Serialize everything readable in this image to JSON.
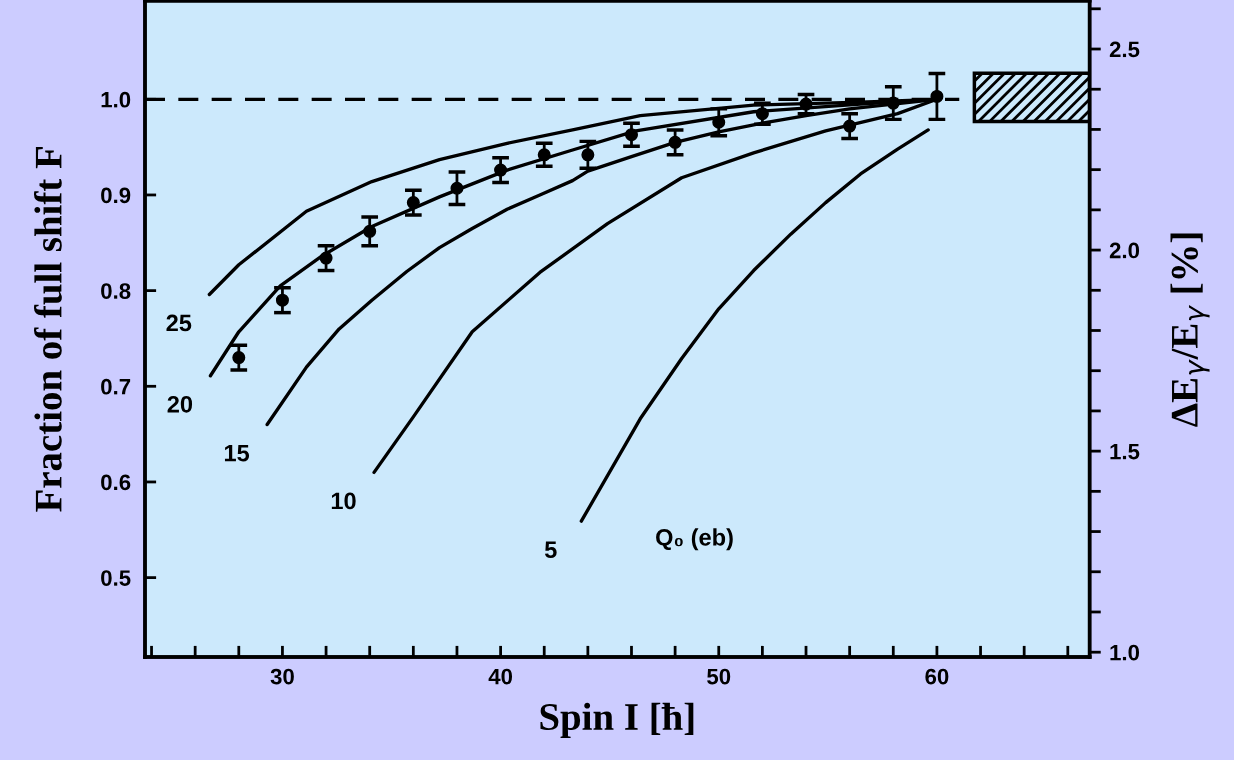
{
  "chart_data": {
    "type": "line",
    "xlabel": "Spin I [ħ]",
    "ylabel": "Fraction of full shift F",
    "y2label": "ΔE$_{γ}$/E$_{γ}$ [%]",
    "annotations": [
      "Q₀ (eb)"
    ],
    "xlim": [
      23.7,
      67
    ],
    "ylim": [
      0.417,
      1.103
    ],
    "y2lim": [
      0.988,
      2.62
    ],
    "xticks": [
      {
        "value": 24,
        "label": null
      },
      {
        "value": 26,
        "label": null
      },
      {
        "value": 28,
        "label": null
      },
      {
        "value": 30,
        "label": "30"
      },
      {
        "value": 32,
        "label": null
      },
      {
        "value": 34,
        "label": null
      },
      {
        "value": 36,
        "label": null
      },
      {
        "value": 38,
        "label": null
      },
      {
        "value": 40,
        "label": "40"
      },
      {
        "value": 42,
        "label": null
      },
      {
        "value": 44,
        "label": null
      },
      {
        "value": 46,
        "label": null
      },
      {
        "value": 48,
        "label": null
      },
      {
        "value": 50,
        "label": "50"
      },
      {
        "value": 52,
        "label": null
      },
      {
        "value": 54,
        "label": null
      },
      {
        "value": 56,
        "label": null
      },
      {
        "value": 58,
        "label": null
      },
      {
        "value": 60,
        "label": "60"
      },
      {
        "value": 62,
        "label": null
      },
      {
        "value": 64,
        "label": null
      },
      {
        "value": 66,
        "label": null
      }
    ],
    "yticks": [
      {
        "value": 0.5,
        "label": "0.5"
      },
      {
        "value": 0.6,
        "label": "0.6"
      },
      {
        "value": 0.7,
        "label": "0.7"
      },
      {
        "value": 0.8,
        "label": "0.8"
      },
      {
        "value": 0.9,
        "label": "0.9"
      },
      {
        "value": 1.0,
        "label": "1.0"
      }
    ],
    "y2ticks": [
      {
        "value": 1.0,
        "label": "1.0"
      },
      {
        "value": 1.1,
        "label": null
      },
      {
        "value": 1.2,
        "label": null
      },
      {
        "value": 1.3,
        "label": null
      },
      {
        "value": 1.4,
        "label": null
      },
      {
        "value": 1.5,
        "label": "1.5"
      },
      {
        "value": 1.6,
        "label": null
      },
      {
        "value": 1.7,
        "label": null
      },
      {
        "value": 1.8,
        "label": null
      },
      {
        "value": 1.9,
        "label": null
      },
      {
        "value": 2.0,
        "label": "2.0"
      },
      {
        "value": 2.1,
        "label": null
      },
      {
        "value": 2.2,
        "label": null
      },
      {
        "value": 2.3,
        "label": null
      },
      {
        "value": 2.4,
        "label": null
      },
      {
        "value": 2.5,
        "label": "2.5"
      },
      {
        "value": 2.6,
        "label": null
      }
    ],
    "ref_lines": [
      {
        "axis": "y",
        "value": 1.0,
        "color": "#000000",
        "line_style": "dashed"
      }
    ],
    "bands": [
      {
        "axis": "y2",
        "from": 2.32,
        "to": 2.44,
        "color": "#000000"
      }
    ],
    "grid": false,
    "legend": false,
    "series": [
      {
        "name": "25",
        "color": "#000000",
        "marker": "none",
        "x": [
          26.65,
          28.0,
          31.1,
          34.1,
          37.2,
          40.3,
          43.3,
          46.4,
          51.6,
          56.5,
          60.0
        ],
        "values": [
          0.796,
          0.827,
          0.883,
          0.914,
          0.937,
          0.954,
          0.968,
          0.983,
          0.994,
          0.997,
          1.0
        ]
      },
      {
        "name": "20",
        "color": "#000000",
        "marker": "none",
        "x": [
          26.7,
          28.0,
          29.9,
          31.8,
          34.1,
          37.2,
          40.3,
          43.3,
          46.2,
          51.6,
          56.5,
          60.0
        ],
        "values": [
          0.711,
          0.757,
          0.805,
          0.836,
          0.867,
          0.898,
          0.926,
          0.947,
          0.967,
          0.987,
          0.995,
          1.0
        ]
      },
      {
        "name": "15",
        "color": "#000000",
        "marker": "none",
        "x": [
          29.3,
          31.1,
          32.6,
          34.1,
          35.7,
          37.2,
          38.7,
          40.3,
          41.8,
          43.3,
          44.0,
          46.0,
          48.0,
          50.0,
          52.0,
          54.0,
          56.0,
          58.0,
          60.0
        ],
        "values": [
          0.66,
          0.72,
          0.76,
          0.79,
          0.82,
          0.845,
          0.865,
          0.885,
          0.9,
          0.915,
          0.925,
          0.94,
          0.955,
          0.966,
          0.975,
          0.983,
          0.99,
          0.995,
          1.0
        ]
      },
      {
        "name": "10",
        "color": "#000000",
        "marker": "none",
        "x": [
          34.2,
          36.0,
          38.7,
          41.8,
          44.9,
          48.3,
          51.6,
          54.9,
          58.2,
          60.0
        ],
        "values": [
          0.61,
          0.668,
          0.757,
          0.819,
          0.87,
          0.918,
          0.944,
          0.967,
          0.985,
          1.0
        ]
      },
      {
        "name": "5",
        "color": "#000000",
        "marker": "none",
        "x": [
          43.7,
          46.4,
          48.3,
          50.0,
          51.6,
          53.3,
          54.9,
          56.5,
          58.2,
          59.6
        ],
        "values": [
          0.559,
          0.666,
          0.729,
          0.781,
          0.821,
          0.859,
          0.892,
          0.922,
          0.948,
          0.968
        ]
      },
      {
        "type": "scatter",
        "color": "#000000",
        "marker": "circle",
        "x": [
          28,
          30,
          32,
          34,
          36,
          38,
          40,
          42,
          44,
          46,
          48,
          50,
          52,
          54,
          56,
          58,
          60
        ],
        "values": [
          0.73,
          0.79,
          0.834,
          0.862,
          0.892,
          0.907,
          0.926,
          0.942,
          0.942,
          0.963,
          0.955,
          0.976,
          0.985,
          0.995,
          0.972,
          0.996,
          1.003
        ],
        "errors": [
          0.013,
          0.013,
          0.013,
          0.015,
          0.013,
          0.017,
          0.013,
          0.012,
          0.014,
          0.012,
          0.013,
          0.014,
          0.011,
          0.01,
          0.013,
          0.017,
          0.024
        ]
      }
    ]
  }
}
